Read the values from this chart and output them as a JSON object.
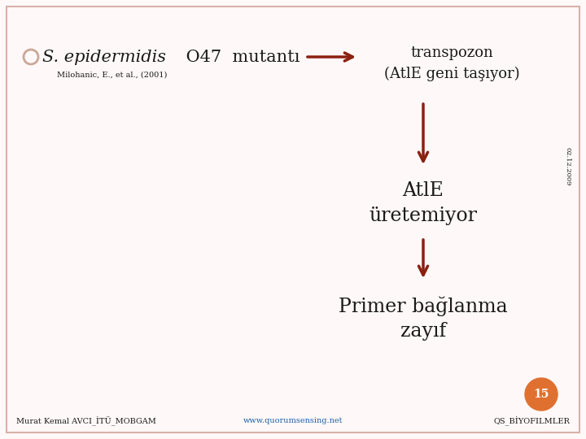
{
  "bg_color": "#fef8f8",
  "border_color": "#d9b0a8",
  "title_italic": "S. epidermidis",
  "title_normal": " O47  mutantı",
  "subtitle": "Milohanic, E., et al., (2001)",
  "arrow_color": "#8b2010",
  "bullet_color": "#c8a898",
  "box1_text": "transpozon\n(AtlE geni taşıyor)",
  "box2_text": "AtlE\nüretemiyor",
  "box3_text": "Primer bağlanma\nzayıf",
  "date_text": "02.12.2009",
  "footer_left": "Murat Kemal AVCI_İTÜ_MOBGAM",
  "footer_center": "www.quorumsensing.net",
  "footer_right": "QS_BİYOFILMLER",
  "page_num": "15",
  "page_bg": "#e07030",
  "text_color": "#1a1a1a",
  "link_color": "#1a5fa8",
  "font_size_title": 15,
  "font_size_box1": 13,
  "font_size_box2": 17,
  "font_size_box3": 17,
  "font_size_footer": 7,
  "font_size_subtitle": 7,
  "font_size_date": 6,
  "font_size_page": 10
}
